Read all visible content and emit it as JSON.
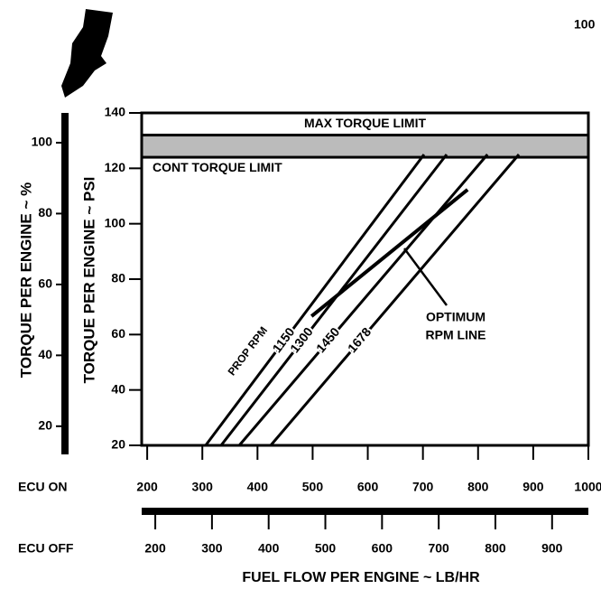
{
  "page_number": "100",
  "chart_data": {
    "type": "line",
    "ylabel": "TORQUE PER ENGINE ~ PSI",
    "y2label": "TORQUE PER ENGINE ~ %",
    "xlabel": "FUEL FLOW PER ENGINE ~ LB/HR",
    "x_axis_name": "ECU ON",
    "x2_axis_name": "ECU OFF",
    "xlim": [
      190,
      1000
    ],
    "xticks": [
      200,
      300,
      400,
      500,
      600,
      700,
      800,
      900,
      1000
    ],
    "x2lim": [
      176,
      964
    ],
    "x2ticks": [
      200,
      300,
      400,
      500,
      600,
      700,
      800,
      900
    ],
    "ylim": [
      20,
      140
    ],
    "yticks": [
      20,
      40,
      60,
      80,
      100,
      120,
      140
    ],
    "y2lim": [
      14.6,
      108.4
    ],
    "y2ticks": [
      20,
      40,
      60,
      80,
      100
    ],
    "grid": false,
    "limit_bands": [
      {
        "label": "MAX TORQUE LIMIT",
        "range": [
          132,
          140
        ]
      },
      {
        "label": "CONT TORQUE LIMIT",
        "range": [
          124,
          132
        ]
      }
    ],
    "series_group_label": "PROP RPM",
    "series": [
      {
        "name": "1150",
        "color": "#000000",
        "x": [
          306,
          702
        ],
        "values": [
          20,
          125
        ]
      },
      {
        "name": "1300",
        "color": "#000000",
        "x": [
          334,
          743
        ],
        "values": [
          20,
          125
        ]
      },
      {
        "name": "1450",
        "color": "#000000",
        "x": [
          367,
          817
        ],
        "values": [
          20,
          125
        ]
      },
      {
        "name": "1678",
        "color": "#000000",
        "x": [
          424,
          874
        ],
        "values": [
          20,
          125
        ]
      }
    ],
    "optimum_line": {
      "label": [
        "OPTIMUM",
        "RPM LINE"
      ],
      "color": "#000000",
      "x": [
        498,
        781
      ],
      "values": [
        66.6,
        112.3
      ]
    }
  }
}
